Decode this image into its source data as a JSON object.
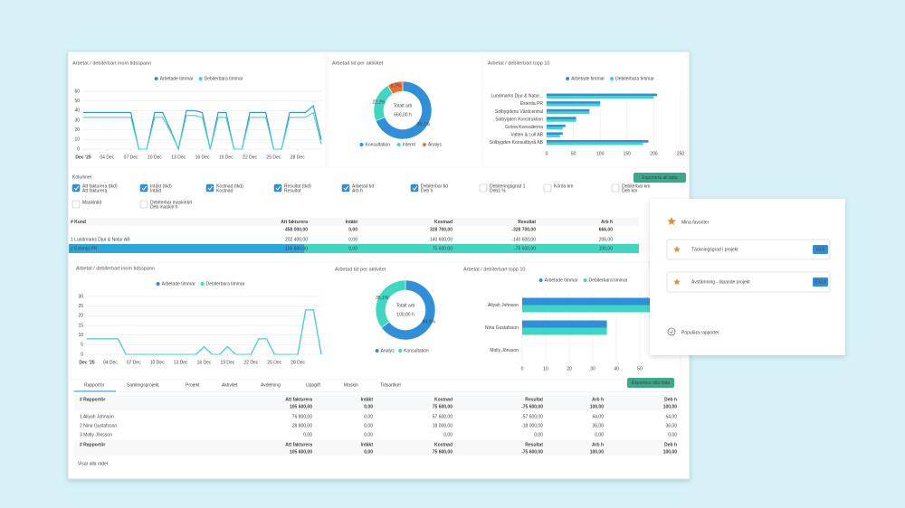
{
  "top": {
    "line": {
      "type": "line",
      "title": "Arbetat / debiterbart inom tidsspann",
      "x": [
        1,
        2,
        3,
        4,
        5,
        6,
        7,
        8,
        9,
        10,
        11,
        12,
        13,
        14,
        15,
        16,
        17,
        18,
        19,
        20,
        21,
        22,
        23,
        24,
        25,
        26,
        27,
        28,
        29,
        30,
        31
      ],
      "xticks": [
        {
          "value": 1,
          "label": "Dec '25"
        },
        {
          "value": 4,
          "label": "04 Dec"
        },
        {
          "value": 7,
          "label": "07 Dec"
        },
        {
          "value": 10,
          "label": "10 Dec"
        },
        {
          "value": 13,
          "label": "13 Dec"
        },
        {
          "value": 16,
          "label": "16 Dec"
        },
        {
          "value": 19,
          "label": "19 Dec"
        },
        {
          "value": 22,
          "label": "22 Dec"
        },
        {
          "value": 25,
          "label": "25 Dec"
        },
        {
          "value": 28,
          "label": "28 Dec"
        }
      ],
      "xlim": [
        1,
        31
      ],
      "ylim": [
        0,
        60
      ],
      "yticks": [
        0,
        10,
        20,
        30,
        40,
        50,
        60
      ],
      "series": [
        {
          "name": "Arbetade timmar",
          "color": "#2f8fd8",
          "values": [
            38,
            38,
            38,
            38,
            38,
            38,
            38,
            0,
            0,
            38,
            38,
            20,
            0,
            40,
            40,
            38,
            0,
            38,
            38,
            0,
            0,
            38,
            38,
            38,
            0,
            0,
            38,
            38,
            38,
            45,
            10
          ]
        },
        {
          "name": "Debiterbara timmar",
          "color": "#3fd7c2",
          "values": [
            33,
            33,
            33,
            33,
            33,
            33,
            33,
            0,
            0,
            33,
            33,
            18,
            0,
            35,
            35,
            33,
            0,
            33,
            33,
            0,
            0,
            33,
            33,
            33,
            0,
            0,
            33,
            33,
            33,
            38,
            5
          ]
        }
      ]
    },
    "donut": {
      "type": "pie",
      "title": "Arbetad tid per aktivitet",
      "center_label": "Totalt arb",
      "center_value": "666,00 h",
      "categories": [
        "Konsultation",
        "Internt",
        "Analys"
      ],
      "colors": [
        "#2f8fd8",
        "#3fd7c2",
        "#e8703a"
      ],
      "values": [
        69.1,
        22.2,
        8.7
      ],
      "value_labels": [
        "69,1%",
        "22,2%",
        "8,7%"
      ]
    },
    "bar": {
      "type": "barh",
      "title": "Arbetat / debiterbart topp 10",
      "categories": [
        "Lundmarks Djur & Natur...",
        "Extenta PR",
        "Solbygdens Vårdcentral",
        "Solbygden Konstruktion",
        "Gröna Konsulterna",
        "Valten & Lull AB",
        "Solbygden Konsultbyrå AB"
      ],
      "xlim": [
        0,
        250
      ],
      "xticks": [
        0,
        50,
        100,
        150,
        200,
        250
      ],
      "series": [
        {
          "name": "Arbetade timmar",
          "color": "#2f8fd8",
          "values": [
            206,
            100,
            80,
            55,
            35,
            30,
            190
          ]
        },
        {
          "name": "Debiterbara timmar",
          "color": "#3fd7c2",
          "values": [
            200,
            100,
            80,
            55,
            30,
            25,
            180
          ]
        }
      ]
    }
  },
  "columns": {
    "title": "Kolumner",
    "export": "Exportera all data",
    "items": [
      {
        "label": "Att fakturera (tkd)",
        "sub": "Att fakturera",
        "checked": true
      },
      {
        "label": "Intäkt (tkd)",
        "sub": "Intäkt",
        "checked": true
      },
      {
        "label": "Kostnad (tkd)",
        "sub": "Kostnad",
        "checked": true
      },
      {
        "label": "Resultat (tkd)",
        "sub": "Resultat",
        "checked": true
      },
      {
        "label": "Arbetad tid",
        "sub": "Arb h",
        "checked": true
      },
      {
        "label": "Debiterbar tid",
        "sub": "Deb h",
        "checked": true
      },
      {
        "label": "Debiteringsgrad 1",
        "sub": "Deb1 %",
        "checked": false
      },
      {
        "label": "Körda km",
        "checked": false
      },
      {
        "label": "Debiterbar km",
        "sub": "Deb km",
        "checked": false
      },
      {
        "label": "Maskintid",
        "checked": false
      },
      {
        "label": "Debiterbar maskintid",
        "sub": "Deb maskin h",
        "checked": false
      }
    ]
  },
  "table1": {
    "headers": [
      "# Kund",
      "Att fakturera",
      "Intäkt",
      "Kostnad",
      "Resultat",
      "Arb h"
    ],
    "totals": [
      "",
      "458 000,00",
      "0,00",
      "328 700,00",
      "-328 700,00",
      "666,00"
    ],
    "rows": [
      [
        "1 Lundmarks Djur & Natur AB",
        "202 400,00",
        "0,00",
        "140 600,00",
        "-140 600,00",
        "206,00"
      ],
      [
        "2 Extenta PR",
        "105 600,00",
        "0,00",
        "75 600,00",
        "-75 600,00",
        "100,00"
      ]
    ]
  },
  "bottom": {
    "line": {
      "type": "line",
      "title": "Arbetat / debiterbart inom tidsspann",
      "x": [
        1,
        2,
        3,
        4,
        5,
        6,
        7,
        8,
        9,
        10,
        11,
        12,
        13,
        14,
        15,
        16,
        17,
        18,
        19,
        20,
        21,
        22,
        23,
        24,
        25,
        26,
        27,
        28,
        29,
        30,
        31
      ],
      "xticks": [
        {
          "value": 1,
          "label": "Dec '25"
        },
        {
          "value": 4,
          "label": "04 Dec"
        },
        {
          "value": 7,
          "label": "07 Dec"
        },
        {
          "value": 10,
          "label": "10 Dec"
        },
        {
          "value": 13,
          "label": "13 Dec"
        },
        {
          "value": 16,
          "label": "16 Dec"
        },
        {
          "value": 19,
          "label": "19 Dec"
        },
        {
          "value": 22,
          "label": "22 Dec"
        },
        {
          "value": 25,
          "label": "25 Dec"
        },
        {
          "value": 28,
          "label": "28 Dec"
        }
      ],
      "xlim": [
        1,
        31
      ],
      "ylim": [
        0,
        30
      ],
      "yticks": [
        0,
        5,
        10,
        15,
        20,
        25,
        30
      ],
      "series": [
        {
          "name": "Arbetade timmar",
          "color": "#2f8fd8",
          "values": [
            8,
            8,
            8,
            8,
            8,
            0,
            0,
            0,
            0,
            0,
            0,
            0,
            0,
            0,
            0,
            4,
            0,
            0,
            4,
            0,
            0,
            0,
            8,
            8,
            0,
            0,
            0,
            0,
            23,
            23,
            0
          ]
        },
        {
          "name": "Debiterbara timmar",
          "color": "#3fd7c2",
          "values": [
            8,
            8,
            8,
            8,
            8,
            0,
            0,
            0,
            0,
            0,
            0,
            0,
            0,
            0,
            0,
            4,
            0,
            0,
            4,
            0,
            0,
            0,
            8,
            8,
            0,
            0,
            0,
            0,
            23,
            23,
            0
          ]
        }
      ]
    },
    "donut": {
      "type": "pie",
      "title": "Arbetad tid per aktivitet",
      "center_label": "Totalt arb",
      "center_value": "100,00 h",
      "categories": [
        "Analys",
        "Konsultation"
      ],
      "colors": [
        "#2f8fd8",
        "#3fd7c2"
      ],
      "values": [
        64.9,
        35.1
      ],
      "value_labels": [
        "64,9%",
        "35,1%"
      ]
    },
    "bar": {
      "type": "barh",
      "title": "Arbetat / debiterbart topp 10",
      "categories": [
        "Aliyah Johnson",
        "Nina Gustafsson",
        "Molly Jönsson"
      ],
      "xlim": [
        0,
        55
      ],
      "xticks": [
        0,
        10,
        20,
        30,
        40,
        50
      ],
      "series": [
        {
          "name": "Arbetade timmar",
          "color": "#2f8fd8",
          "values": [
            64,
            36,
            0
          ]
        },
        {
          "name": "Debiterbara timmar",
          "color": "#3fd7c2",
          "values": [
            64,
            36,
            0
          ]
        }
      ]
    },
    "tabs": [
      "Rapportör",
      "Samlingsprojekt",
      "Projekt",
      "Aktivitet",
      "Avdelning",
      "Uppgift",
      "Maskin",
      "Tidsartikel"
    ],
    "export": "Exportera alla data",
    "table": {
      "headers": [
        "# Rapportör",
        "Att fakturera",
        "Intäkt",
        "Kostnad",
        "Resultat",
        "Arb h",
        "Deb h"
      ],
      "totals": [
        "",
        "105 600,00",
        "0,00",
        "75 600,00",
        "-75 600,00",
        "100,00",
        "100,00"
      ],
      "rows": [
        [
          "1 Aliyah Johnson",
          "76 800,00",
          "0,00",
          "57 600,00",
          "-57 600,00",
          "64,00",
          "64,00"
        ],
        [
          "2 Nina Gustafsson",
          "28 800,00",
          "0,00",
          "18 000,00",
          "-18 000,00",
          "36,00",
          "36,00"
        ],
        [
          "3 Molly Jönsson",
          "0,00",
          "0,00",
          "0,00",
          "0,00",
          "0,00",
          "0,00"
        ]
      ],
      "footer_headers": [
        "# Rapportör",
        "Att fakturera",
        "Intäkt",
        "Kostnad",
        "Resultat",
        "Arb h",
        "Deb h"
      ],
      "footer_totals": [
        "",
        "105 600,00",
        "0,00",
        "75 600,00",
        "-75 600,00",
        "100,00",
        "100,00"
      ],
      "show_all": "Visar alla rader"
    }
  },
  "favorites": {
    "title": "Mina favoriter",
    "items": [
      {
        "label": "Täckningsgrad i projekt",
        "badge": "OL6"
      },
      {
        "label": "Avstämning - löpande projekt",
        "badge": "EX13"
      }
    ],
    "popular": "Populära rapporter"
  }
}
